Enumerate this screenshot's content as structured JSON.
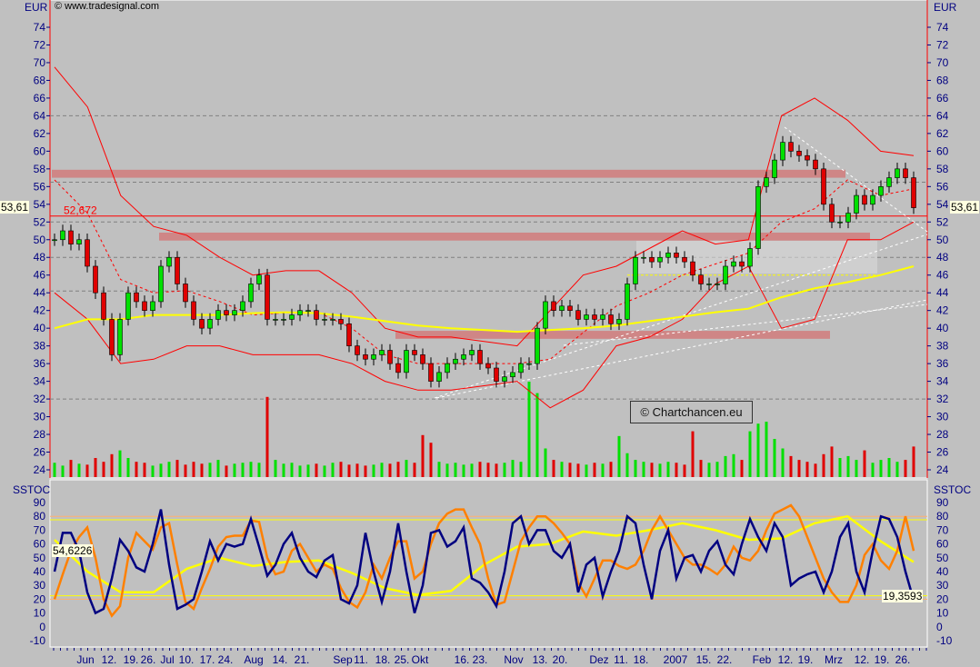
{
  "header": {
    "source": "© www.tradesignal.com",
    "currency_left": "EUR",
    "currency_right": "EUR",
    "watermark": "© Chartchancen.eu"
  },
  "price_panel": {
    "current_price_label": "53,61",
    "resistance_label": "52,672",
    "resistance_level": 52.672,
    "axis_ticks": [
      74,
      72,
      70,
      68,
      66,
      64,
      62,
      60,
      58,
      56,
      54,
      52,
      50,
      48,
      46,
      44,
      42,
      40,
      38,
      36,
      34,
      32,
      30,
      28,
      26,
      24
    ],
    "grid_levels": [
      64,
      56.5,
      52,
      48,
      44.2,
      32
    ],
    "zones": [
      {
        "from": 57.0,
        "to": 57.9
      },
      {
        "from": 49.9,
        "to": 50.8
      },
      {
        "from": 38.8,
        "to": 39.7
      }
    ],
    "colors": {
      "up": "#00e000",
      "down": "#e00000",
      "bollinger": "#ff0000",
      "moving_average": "#ffff00",
      "zone": "#d08080"
    }
  },
  "stoch_panel": {
    "title_left": "SSTOC",
    "title_right": "SSTOC",
    "left_value_label": "54,6226",
    "right_value_label": "19,3593",
    "axis_ticks": [
      90,
      80,
      70,
      60,
      50,
      40,
      30,
      20,
      10,
      0,
      -10
    ],
    "levels_orange": [
      80,
      20
    ],
    "levels_yellow": [
      77.5,
      22.5
    ],
    "colors": {
      "k": "#000080",
      "d": "#ff8000",
      "signal": "#ffff00"
    }
  },
  "date_labels": [
    "Jun",
    "12.",
    "19.",
    "26.",
    "Jul",
    "10.",
    "17.",
    "24.",
    "Aug",
    "14.",
    "21.",
    "Sep",
    "11.",
    "18.",
    "25.",
    "Okt",
    "16.",
    "23.",
    "Nov",
    "13.",
    "20.",
    "Dez",
    "11.",
    "18.",
    "2007",
    "15.",
    "22.",
    "Feb",
    "12.",
    "19.",
    "Mrz",
    "12.",
    "19.",
    "26."
  ],
  "chart_data": {
    "type": "candlestick",
    "ylim": [
      24,
      75
    ],
    "close": [
      50,
      51,
      49.5,
      50,
      47,
      44,
      41,
      37,
      41,
      44,
      43,
      42,
      43,
      47,
      48,
      45,
      43,
      41,
      40,
      41,
      42,
      41.5,
      42,
      43,
      45,
      46,
      41,
      41,
      41,
      41.5,
      42,
      42,
      41,
      41,
      41,
      40.5,
      38,
      37,
      36.5,
      37,
      37.5,
      36,
      35,
      37.5,
      37,
      36,
      34,
      35,
      36,
      36.5,
      37,
      37.5,
      36,
      35.5,
      34,
      34.5,
      35,
      36,
      36,
      40,
      43,
      42,
      42.5,
      42,
      41,
      41.5,
      41,
      41.5,
      40.5,
      41,
      45,
      48,
      48,
      47.5,
      48,
      48.5,
      48,
      47.5,
      46,
      45,
      45,
      45,
      47,
      47.5,
      47,
      49,
      56,
      57,
      59,
      61,
      60,
      59.5,
      59,
      58,
      54,
      52,
      52,
      53,
      55,
      54,
      55,
      56,
      57,
      58,
      57,
      53.61
    ],
    "volume_relative": [
      1.5,
      1.2,
      1.8,
      1.4,
      1.3,
      2,
      1.6,
      2.4,
      2.8,
      2,
      1.6,
      1.5,
      1.2,
      1.4,
      1.6,
      1.8,
      1.3,
      1.6,
      1.4,
      1.5,
      1.8,
      1.2,
      1.4,
      1.5,
      1.6,
      1.5,
      8.4,
      1.8,
      1.4,
      1.5,
      1.2,
      1.3,
      1.4,
      1.2,
      1.5,
      1.6,
      1.3,
      1.4,
      1.2,
      1.3,
      1.5,
      1.4,
      1.6,
      1.8,
      1.5,
      4.4,
      3.6,
      1.6,
      1.4,
      1.5,
      1.3,
      1.4,
      1.6,
      1.5,
      1.4,
      1.5,
      1.8,
      1.6,
      10,
      8.8,
      3,
      1.8,
      1.6,
      1.5,
      1.4,
      1.3,
      1.5,
      1.4,
      1.6,
      4.3,
      2.5,
      1.8,
      1.6,
      1.5,
      1.4,
      1.6,
      1.5,
      1.3,
      4.8,
      1.8,
      1.5,
      1.6,
      2.2,
      2.4,
      1.8,
      4.8,
      5.6,
      5.8,
      4,
      3,
      2.2,
      1.8,
      1.6,
      1.4,
      2.4,
      3.2,
      2,
      2.2,
      1.8,
      2.8,
      1.5,
      1.8,
      2,
      1.6,
      1.8,
      3.2
    ],
    "bollinger_upper": [
      69.5,
      65,
      55,
      51.5,
      50.5,
      48,
      46,
      46.5,
      46.5,
      44,
      40,
      39,
      39,
      38.5,
      38,
      42,
      46,
      47,
      49,
      51,
      49.5,
      50,
      64,
      66,
      63.5,
      60,
      59.5
    ],
    "bollinger_lower": [
      44,
      41,
      36,
      36.5,
      38,
      38,
      37,
      37,
      37,
      36,
      34,
      33,
      33,
      33.5,
      34,
      31,
      33,
      38,
      39,
      41,
      45,
      47,
      40,
      41,
      50,
      50,
      52
    ],
    "moving_average": [
      40,
      41,
      41,
      41.5,
      41.5,
      41.5,
      41.7,
      41.8,
      41.7,
      41.3,
      40.8,
      40.3,
      40,
      39.8,
      39.6,
      39.8,
      40,
      40.3,
      40.8,
      41.3,
      41.8,
      42.2,
      43.5,
      44.5,
      45.2,
      46,
      47
    ],
    "stoch_k": [
      40,
      68,
      68,
      55,
      25,
      10,
      13,
      35,
      63,
      55,
      43,
      40,
      60,
      85,
      45,
      13,
      16,
      20,
      40,
      62,
      48,
      60,
      58,
      60,
      78,
      58,
      37,
      45,
      60,
      68,
      50,
      40,
      36,
      48,
      52,
      20,
      17,
      30,
      68,
      40,
      18,
      40,
      75,
      40,
      10,
      30,
      68,
      70,
      58,
      62,
      72,
      35,
      32,
      25,
      15,
      40,
      75,
      80,
      60,
      70,
      70,
      55,
      50,
      60,
      25,
      45,
      50,
      22,
      40,
      55,
      80,
      75,
      45,
      20,
      55,
      70,
      35,
      50,
      52,
      40,
      55,
      62,
      45,
      38,
      60,
      78,
      65,
      55,
      75,
      65,
      30,
      35,
      38,
      40,
      25,
      40,
      65,
      75,
      40,
      25,
      55,
      80,
      78,
      65,
      40,
      19.36
    ],
    "stoch_d": [
      20,
      38,
      55,
      65,
      72,
      50,
      20,
      8,
      15,
      50,
      68,
      62,
      56,
      72,
      75,
      45,
      18,
      13,
      28,
      42,
      58,
      65,
      66,
      66,
      77,
      76,
      50,
      38,
      40,
      55,
      60,
      50,
      40,
      45,
      42,
      28,
      18,
      14,
      25,
      45,
      35,
      50,
      62,
      62,
      35,
      40,
      60,
      75,
      82,
      85,
      85,
      72,
      60,
      35,
      16,
      18,
      40,
      62,
      72,
      80,
      80,
      75,
      68,
      60,
      32,
      22,
      35,
      48,
      48,
      44,
      42,
      45,
      55,
      70,
      80,
      70,
      60,
      50,
      45,
      45,
      42,
      38,
      45,
      58,
      50,
      48,
      55,
      70,
      82,
      85,
      88,
      80,
      65,
      50,
      35,
      25,
      18,
      18,
      30,
      52,
      60,
      48,
      42,
      55,
      80,
      55
    ],
    "stoch_signal": [
      63,
      40,
      25,
      25,
      42,
      50,
      44,
      47,
      48,
      39,
      28,
      23,
      26,
      45,
      58,
      60,
      69,
      66,
      70,
      75,
      70,
      63,
      64,
      75,
      80,
      62,
      47
    ]
  }
}
